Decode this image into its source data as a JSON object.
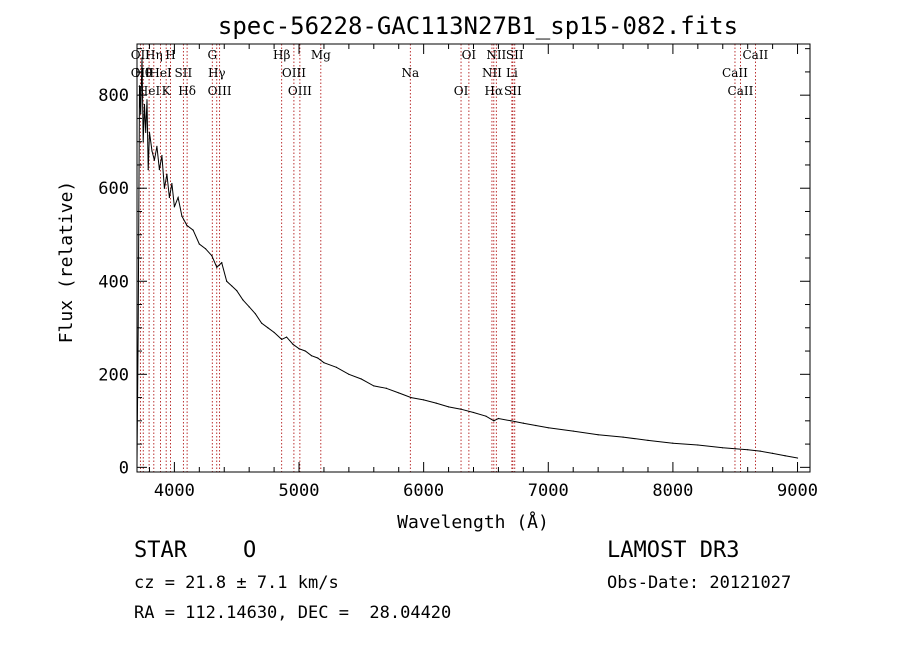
{
  "chart_data": {
    "type": "line",
    "title": "spec-56228-GAC113N27B1_sp15-082.fits",
    "xlabel": "Wavelength (Å)",
    "ylabel": "Flux (relative)",
    "xlim": [
      3700,
      9100
    ],
    "ylim": [
      -10,
      910
    ],
    "xticks": [
      4000,
      5000,
      6000,
      7000,
      8000,
      9000
    ],
    "yticks": [
      0,
      200,
      400,
      600,
      800
    ],
    "line_color": "#000000",
    "marker_color": "#aa0000",
    "series": [
      {
        "name": "flux",
        "x": [
          3700,
          3710,
          3720,
          3730,
          3740,
          3750,
          3760,
          3770,
          3780,
          3790,
          3800,
          3820,
          3840,
          3860,
          3880,
          3900,
          3920,
          3940,
          3960,
          3980,
          4000,
          4030,
          4060,
          4100,
          4150,
          4200,
          4250,
          4300,
          4340,
          4380,
          4420,
          4460,
          4500,
          4550,
          4600,
          4650,
          4700,
          4750,
          4800,
          4861,
          4900,
          4950,
          5000,
          5050,
          5100,
          5150,
          5200,
          5300,
          5400,
          5500,
          5600,
          5700,
          5800,
          5900,
          6000,
          6100,
          6200,
          6300,
          6400,
          6500,
          6563,
          6600,
          6700,
          6800,
          6900,
          7000,
          7200,
          7400,
          7600,
          7800,
          8000,
          8200,
          8400,
          8500,
          8600,
          8700,
          8800,
          8900,
          9000
        ],
        "y": [
          5,
          300,
          820,
          760,
          880,
          700,
          780,
          720,
          790,
          640,
          720,
          680,
          660,
          690,
          640,
          670,
          600,
          630,
          580,
          610,
          560,
          580,
          540,
          520,
          510,
          480,
          470,
          455,
          430,
          440,
          400,
          390,
          380,
          360,
          345,
          330,
          310,
          300,
          290,
          275,
          280,
          265,
          255,
          250,
          240,
          235,
          225,
          215,
          200,
          190,
          175,
          170,
          160,
          150,
          145,
          138,
          130,
          125,
          118,
          110,
          100,
          105,
          100,
          95,
          90,
          85,
          78,
          70,
          65,
          58,
          52,
          48,
          42,
          40,
          38,
          35,
          30,
          25,
          20
        ]
      }
    ],
    "line_markers": [
      {
        "x": 3727,
        "labels": [
          "OII",
          "OII"
        ]
      },
      {
        "x": 3750,
        "labels": [
          "Hθ"
        ]
      },
      {
        "x": 3797,
        "labels": [
          "HeI"
        ]
      },
      {
        "x": 3835,
        "labels": [
          "Hη"
        ]
      },
      {
        "x": 3889,
        "labels": [
          "HeI"
        ]
      },
      {
        "x": 3934,
        "labels": [
          "K"
        ]
      },
      {
        "x": 3969,
        "labels": [
          "H"
        ]
      },
      {
        "x": 4072,
        "labels": [
          "SII"
        ]
      },
      {
        "x": 4102,
        "labels": [
          "Hδ"
        ]
      },
      {
        "x": 4304,
        "labels": [
          "G"
        ]
      },
      {
        "x": 4340,
        "labels": [
          "Hγ"
        ]
      },
      {
        "x": 4363,
        "labels": [
          "OIII"
        ]
      },
      {
        "x": 4861,
        "labels": [
          "Hβ"
        ]
      },
      {
        "x": 4959,
        "labels": [
          "OIII"
        ]
      },
      {
        "x": 5007,
        "labels": [
          "OIII"
        ]
      },
      {
        "x": 5175,
        "labels": [
          "Mg"
        ]
      },
      {
        "x": 5893,
        "labels": [
          "Na"
        ]
      },
      {
        "x": 6300,
        "labels": [
          "OI"
        ]
      },
      {
        "x": 6363,
        "labels": [
          "OI"
        ]
      },
      {
        "x": 6548,
        "labels": [
          "NII"
        ]
      },
      {
        "x": 6563,
        "labels": [
          "Hα"
        ]
      },
      {
        "x": 6583,
        "labels": [
          "NII"
        ]
      },
      {
        "x": 6708,
        "labels": [
          "Li"
        ]
      },
      {
        "x": 6716,
        "labels": [
          "SII"
        ]
      },
      {
        "x": 6731,
        "labels": [
          "SII"
        ]
      },
      {
        "x": 8498,
        "labels": [
          "CaII"
        ]
      },
      {
        "x": 8542,
        "labels": [
          "CaII"
        ]
      },
      {
        "x": 8662,
        "labels": [
          "CaII"
        ]
      }
    ]
  },
  "info": {
    "class": "STAR",
    "subclass": "O",
    "survey": "LAMOST DR3",
    "cz": "cz = 21.8 ± 7.1 km/s",
    "obs_date": "Obs-Date: 20121027",
    "radec": "RA = 112.14630, DEC =  28.04420"
  }
}
